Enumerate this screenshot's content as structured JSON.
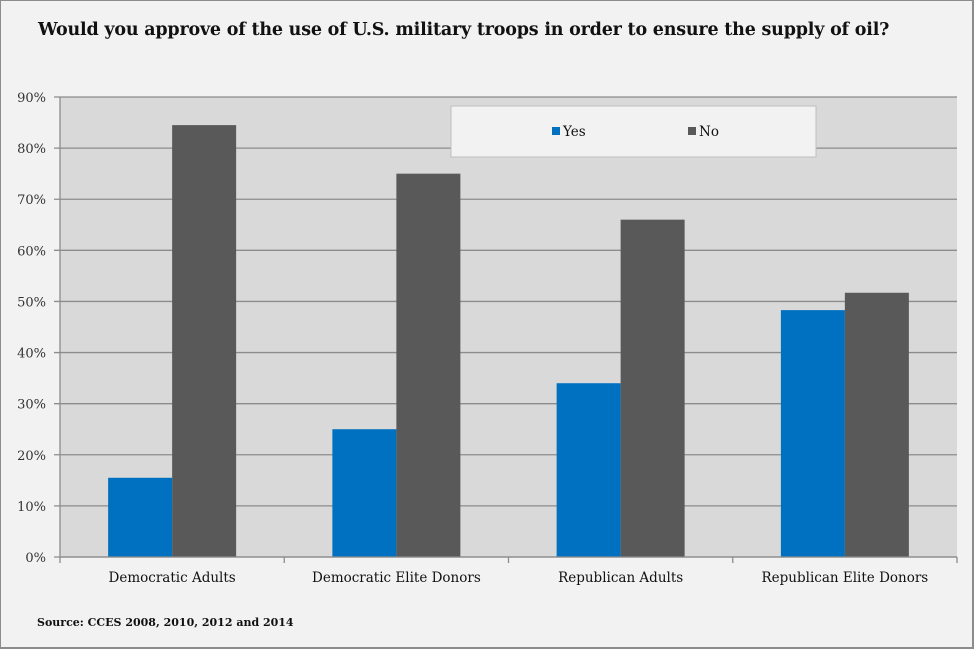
{
  "chart_data": {
    "type": "bar",
    "title": "Would you approve of the use of U.S. military troops in order to ensure the supply of oil?",
    "xlabel": "",
    "ylabel": "",
    "categories": [
      "Democratic Adults",
      "Democratic Elite Donors",
      "Republican Adults",
      "Republican Elite Donors"
    ],
    "series": [
      {
        "name": "Yes",
        "color": "#0070c0",
        "values": [
          15.5,
          25.0,
          34.0,
          48.3
        ]
      },
      {
        "name": "No",
        "color": "#595959",
        "values": [
          84.5,
          75.0,
          66.0,
          51.7
        ]
      }
    ],
    "ylim": [
      0,
      90
    ],
    "yticks": [
      0,
      10,
      20,
      30,
      40,
      50,
      60,
      70,
      80,
      90
    ],
    "ytick_labels": [
      "0%",
      "10%",
      "20%",
      "30%",
      "40%",
      "50%",
      "60%",
      "70%",
      "80%",
      "90%"
    ],
    "grid": true,
    "legend_position": "top-right",
    "source": "Source: CCES 2008, 2010, 2012 and 2014"
  },
  "colors": {
    "plot_background": "#d9d9d9",
    "page_background": "#f2f2f2",
    "gridline": "#8c8c8c"
  }
}
